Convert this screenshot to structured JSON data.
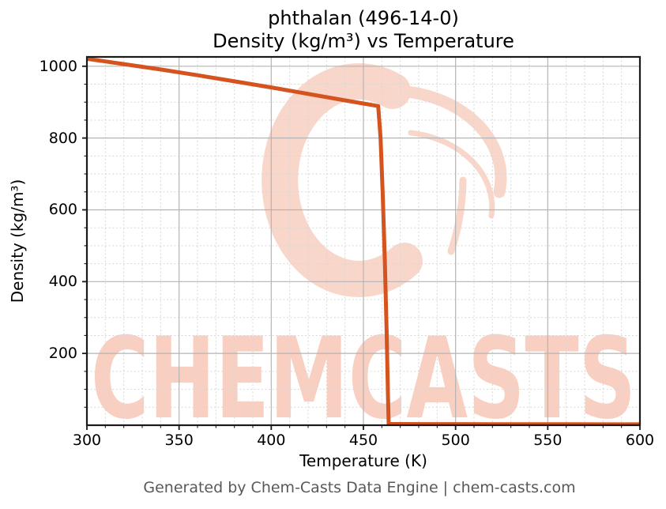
{
  "title": {
    "line1": "phthalan (496-14-0)",
    "line2": "Density (kg/m³) vs Temperature"
  },
  "footer": {
    "text": "Generated by Chem-Casts Data Engine | chem-casts.com"
  },
  "watermark": {
    "text": "CHEMCASTS",
    "text_color": "#f8cfc0",
    "swirl_color": "#f9d6ca"
  },
  "chart_data": {
    "type": "line",
    "title": "phthalan (496-14-0) Density (kg/m³) vs Temperature",
    "xlabel": "Temperature (K)",
    "ylabel": "Density (kg/m³)",
    "xlim": [
      300,
      600
    ],
    "ylim": [
      0,
      1026
    ],
    "x_major_ticks": [
      300,
      350,
      400,
      450,
      500,
      550,
      600
    ],
    "y_major_ticks": [
      200,
      400,
      600,
      800,
      1000
    ],
    "x_minor_step": 10,
    "y_minor_step": 50,
    "grid": {
      "major": true,
      "minor": true
    },
    "legend": "none",
    "series": [
      {
        "name": "Density",
        "color": "#d4531e",
        "points": [
          [
            300,
            1021
          ],
          [
            320,
            1006
          ],
          [
            340,
            991
          ],
          [
            360,
            975
          ],
          [
            380,
            958
          ],
          [
            400,
            941
          ],
          [
            420,
            923
          ],
          [
            440,
            905
          ],
          [
            450,
            896
          ],
          [
            458,
            889
          ],
          [
            459.3,
            800
          ],
          [
            460.5,
            640
          ],
          [
            461.6,
            460
          ],
          [
            462.6,
            260
          ],
          [
            463.3,
            90
          ],
          [
            463.7,
            3.4
          ],
          [
            470,
            3.3
          ],
          [
            485,
            3.15
          ],
          [
            500,
            3.0
          ],
          [
            520,
            2.85
          ],
          [
            540,
            2.72
          ],
          [
            560,
            2.6
          ],
          [
            580,
            2.5
          ],
          [
            600,
            2.4
          ]
        ]
      }
    ]
  }
}
